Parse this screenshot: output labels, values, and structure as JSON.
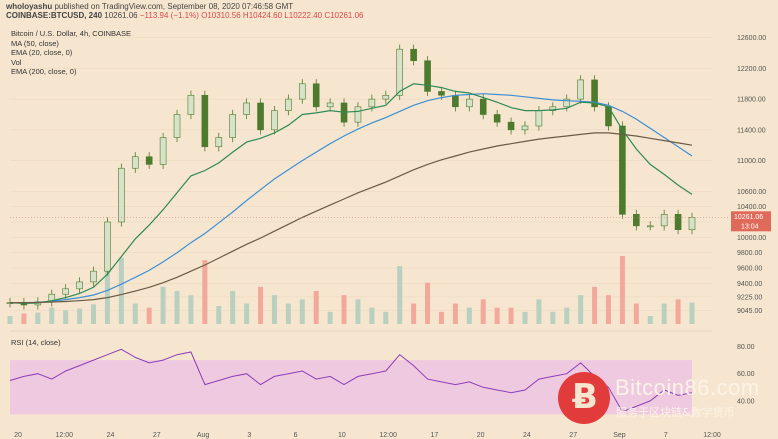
{
  "header": {
    "author": "wholoyashu",
    "published": " published on TradingView.com, September 08, 2020 07:46:58 GMT",
    "symbol": "COINBASE:BTCUSD, 240",
    "price": "10261.06",
    "change": "−113.94 (−1.1%)",
    "ohlc": "O10310.56 H10424.60 L10222.40 C10261.06"
  },
  "legend": {
    "title": "Bitcoin / U.S. Dollar, 4h, COINBASE",
    "ma50": "MA (50, close)",
    "ema20": "EMA (20, close, 0)",
    "vol": "Vol",
    "ema200": "EMA (200, close, 0)"
  },
  "rsi": {
    "label": "RSI (14, close)",
    "levels": [
      "80.00",
      "60.00",
      "40.00"
    ],
    "band": [
      30,
      70
    ]
  },
  "watermark": {
    "name": "Bitcoin86.com",
    "sub": "服务于区块链&数字货币",
    "symbol": "Ƀ"
  },
  "colors": {
    "bg": "#f6e6cf",
    "candle": "#4e7a2e",
    "ma50": "#3e8fd6",
    "ema20": "#2f8a55",
    "ema200": "#6b5b45",
    "vol_up": "#b9cfc0",
    "vol_down": "#f2a99b",
    "rsi": "#8a3fb8",
    "rsi_band": "#efc9e0"
  },
  "chart_data": {
    "type": "line",
    "title": "Bitcoin / U.S. Dollar, 4h, COINBASE",
    "price_axis": {
      "ticks": [
        "12600.00",
        "12200.00",
        "11800.00",
        "11400.00",
        "11000.00",
        "10600.00",
        "10400.00",
        "10200.00",
        "10000.00",
        "9800.00",
        "9600.00",
        "9400.00",
        "9225.00",
        "9045.00"
      ],
      "current_price": "10261.06",
      "countdown": "13:04"
    },
    "x_ticks": [
      "20",
      "12:00",
      "24",
      "27",
      "Aug",
      "3",
      "6",
      "10",
      "12:00",
      "17",
      "20",
      "24",
      "27",
      "Sep",
      "7",
      "12:00"
    ],
    "series": [
      {
        "name": "Price",
        "values": [
          9150,
          9120,
          9160,
          9260,
          9330,
          9420,
          9560,
          10200,
          10900,
          11050,
          10950,
          11300,
          11600,
          11850,
          11180,
          11300,
          11600,
          11750,
          11400,
          11650,
          11800,
          12000,
          11700,
          11750,
          11500,
          11700,
          11800,
          11850,
          12450,
          12300,
          11900,
          11850,
          11700,
          11800,
          11600,
          11500,
          11400,
          11450,
          11650,
          11700,
          11800,
          12050,
          11700,
          11450,
          10300,
          10150,
          10150,
          10300,
          10100,
          10261
        ]
      },
      {
        "name": "MA (50, close)",
        "values": [
          9150,
          9150,
          9155,
          9170,
          9190,
          9215,
          9250,
          9310,
          9390,
          9480,
          9570,
          9680,
          9800,
          9930,
          10050,
          10190,
          10330,
          10480,
          10620,
          10760,
          10880,
          11000,
          11110,
          11220,
          11320,
          11410,
          11490,
          11560,
          11640,
          11720,
          11780,
          11820,
          11850,
          11860,
          11870,
          11860,
          11850,
          11830,
          11810,
          11790,
          11780,
          11770,
          11760,
          11720,
          11640,
          11540,
          11420,
          11300,
          11180,
          11060
        ]
      },
      {
        "name": "EMA (20, close, 0)",
        "values": [
          9150,
          9140,
          9145,
          9175,
          9215,
          9270,
          9350,
          9520,
          9750,
          9980,
          10160,
          10360,
          10580,
          10800,
          10870,
          10970,
          11110,
          11240,
          11290,
          11360,
          11460,
          11600,
          11620,
          11650,
          11630,
          11640,
          11680,
          11720,
          11900,
          12000,
          11980,
          11950,
          11900,
          11880,
          11820,
          11760,
          11690,
          11650,
          11650,
          11660,
          11680,
          11760,
          11750,
          11700,
          11400,
          11150,
          10950,
          10820,
          10680,
          10560
        ]
      },
      {
        "name": "EMA (200, close, 0)",
        "values": [
          9150,
          9150,
          9152,
          9158,
          9165,
          9175,
          9190,
          9215,
          9255,
          9300,
          9350,
          9410,
          9480,
          9560,
          9640,
          9730,
          9820,
          9910,
          9990,
          10080,
          10170,
          10260,
          10340,
          10420,
          10500,
          10580,
          10650,
          10720,
          10800,
          10880,
          10950,
          11010,
          11060,
          11110,
          11150,
          11190,
          11220,
          11250,
          11280,
          11300,
          11320,
          11340,
          11360,
          11360,
          11340,
          11320,
          11290,
          11260,
          11230,
          11200
        ]
      },
      {
        "name": "RSI (14, close)",
        "values": [
          55,
          58,
          60,
          56,
          62,
          66,
          70,
          74,
          78,
          72,
          68,
          70,
          74,
          76,
          52,
          55,
          58,
          60,
          52,
          58,
          60,
          62,
          56,
          58,
          52,
          58,
          60,
          62,
          74,
          66,
          56,
          54,
          52,
          54,
          50,
          48,
          46,
          48,
          56,
          58,
          60,
          68,
          58,
          50,
          32,
          36,
          40,
          48,
          44,
          46
        ]
      }
    ]
  }
}
